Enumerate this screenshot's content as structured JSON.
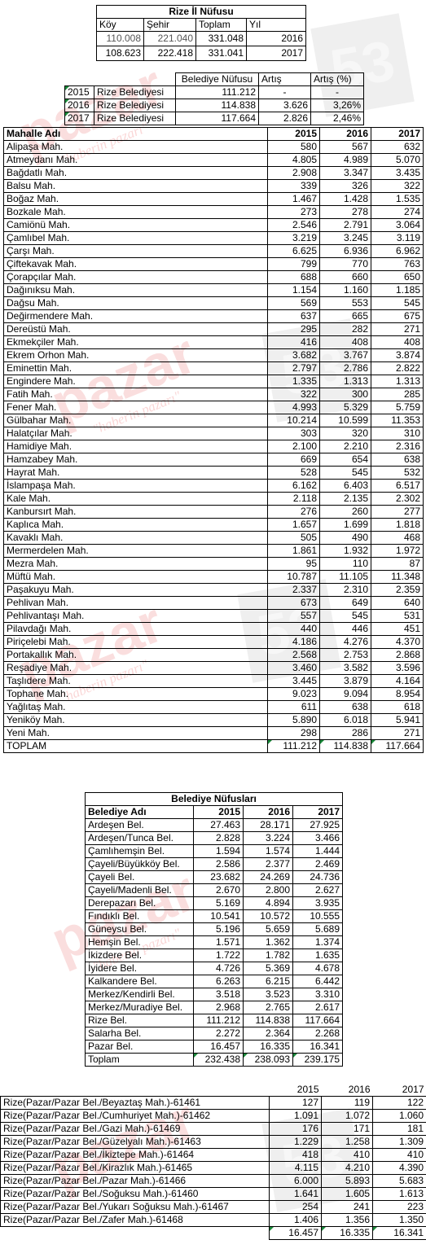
{
  "watermark": {
    "brand": "pazar",
    "slogan": "\"haberin pazarı\"",
    "badge": "53"
  },
  "nufus": {
    "title": "Rize İl Nüfusu",
    "headers": [
      "Köy",
      "Şehir",
      "Toplam",
      "Yıl"
    ],
    "rows": [
      [
        "110.008",
        "221.040",
        "331.048",
        "2016"
      ],
      [
        "108.623",
        "222.418",
        "331.041",
        "2017"
      ]
    ]
  },
  "belediye_nufus": {
    "headers": [
      "",
      "",
      "Belediye Nüfusu",
      "Artış",
      "Artış (%)"
    ],
    "rows": [
      [
        "2015",
        "Rize Belediyesi",
        "111.212",
        "-",
        "-"
      ],
      [
        "2016",
        "Rize Belediyesi",
        "114.838",
        "3.626",
        "3,26%"
      ],
      [
        "2017",
        "Rize Belediyesi",
        "117.664",
        "2.826",
        "2,46%"
      ]
    ]
  },
  "mahalle": {
    "headers": [
      "Mahalle Adı",
      "2015",
      "2016",
      "2017"
    ],
    "rows": [
      [
        "Alipaşa Mah.",
        "580",
        "567",
        "632"
      ],
      [
        "Atmeydanı Mah.",
        "4.805",
        "4.989",
        "5.070"
      ],
      [
        "Bağdatlı Mah.",
        "2.908",
        "3.347",
        "3.435"
      ],
      [
        "Balsu Mah.",
        "339",
        "326",
        "322"
      ],
      [
        "Boğaz Mah.",
        "1.467",
        "1.428",
        "1.535"
      ],
      [
        "Bozkale Mah.",
        "273",
        "278",
        "274"
      ],
      [
        "Camiönü Mah.",
        "2.546",
        "2.791",
        "3.064"
      ],
      [
        "Çamlıbel Mah.",
        "3.219",
        "3.245",
        "3.119"
      ],
      [
        "Çarşı Mah.",
        "6.625",
        "6.936",
        "6.962"
      ],
      [
        "Çiftekavak Mah.",
        "799",
        "770",
        "763"
      ],
      [
        "Çorapçılar Mah.",
        "688",
        "660",
        "650"
      ],
      [
        "Dağınıksu Mah.",
        "1.154",
        "1.160",
        "1.185"
      ],
      [
        "Dağsu Mah.",
        "569",
        "553",
        "545"
      ],
      [
        "Değirmendere Mah.",
        "637",
        "665",
        "675"
      ],
      [
        "Dereüstü Mah.",
        "295",
        "282",
        "271"
      ],
      [
        "Ekmekçiler Mah.",
        "416",
        "408",
        "408"
      ],
      [
        "Ekrem Orhon Mah.",
        "3.682",
        "3.767",
        "3.874"
      ],
      [
        "Eminettin Mah.",
        "2.797",
        "2.786",
        "2.822"
      ],
      [
        "Engindere Mah.",
        "1.335",
        "1.313",
        "1.313"
      ],
      [
        "Fatih Mah.",
        "322",
        "300",
        "285"
      ],
      [
        "Fener Mah.",
        "4.993",
        "5.329",
        "5.759"
      ],
      [
        "Gülbahar Mah.",
        "10.214",
        "10.599",
        "11.353"
      ],
      [
        "Halatçılar Mah.",
        "303",
        "320",
        "310"
      ],
      [
        "Hamidiye Mah.",
        "2.100",
        "2.210",
        "2.316"
      ],
      [
        "Hamzabey Mah.",
        "669",
        "654",
        "638"
      ],
      [
        "Hayrat Mah.",
        "528",
        "545",
        "532"
      ],
      [
        "İslampaşa Mah.",
        "6.162",
        "6.403",
        "6.517"
      ],
      [
        "Kale Mah.",
        "2.118",
        "2.135",
        "2.302"
      ],
      [
        "Kanbursırt Mah.",
        "276",
        "260",
        "277"
      ],
      [
        "Kaplıca Mah.",
        "1.657",
        "1.699",
        "1.818"
      ],
      [
        "Kavaklı Mah.",
        "505",
        "490",
        "468"
      ],
      [
        "Mermerdelen Mah.",
        "1.861",
        "1.932",
        "1.972"
      ],
      [
        "Mezra Mah.",
        "95",
        "110",
        "87"
      ],
      [
        "Müftü Mah.",
        "10.787",
        "11.105",
        "11.348"
      ],
      [
        "Paşakuyu Mah.",
        "2.337",
        "2.310",
        "2.359"
      ],
      [
        "Pehlivan Mah.",
        "673",
        "649",
        "640"
      ],
      [
        "Pehlivantaşı Mah.",
        "557",
        "545",
        "531"
      ],
      [
        "Pilavdağı Mah.",
        "440",
        "446",
        "451"
      ],
      [
        "Piriçelebi Mah.",
        "4.186",
        "4.276",
        "4.370"
      ],
      [
        "Portakallık Mah.",
        "2.568",
        "2.753",
        "2.868"
      ],
      [
        "Reşadiye Mah.",
        "3.460",
        "3.582",
        "3.596"
      ],
      [
        "Taşlıdere Mah.",
        "3.445",
        "3.879",
        "4.164"
      ],
      [
        "Tophane Mah.",
        "9.023",
        "9.094",
        "8.954"
      ],
      [
        "Yağlıtaş Mah.",
        "611",
        "638",
        "618"
      ],
      [
        "Yeniköy Mah.",
        "5.890",
        "6.018",
        "5.941"
      ],
      [
        "Yeni Mah.",
        "298",
        "286",
        "271"
      ]
    ],
    "total": [
      "TOPLAM",
      "111.212",
      "114.838",
      "117.664"
    ]
  },
  "belediyeler": {
    "title": "Belediye Nüfusları",
    "headers": [
      "Belediye Adı",
      "2015",
      "2016",
      "2017"
    ],
    "rows": [
      [
        "Ardeşen Bel.",
        "27.463",
        "28.171",
        "27.925"
      ],
      [
        "Ardeşen/Tunca Bel.",
        "2.828",
        "3.224",
        "3.466"
      ],
      [
        "Çamlıhemşin Bel.",
        "1.594",
        "1.574",
        "1.444"
      ],
      [
        "Çayeli/Büyükköy Bel.",
        "2.586",
        "2.377",
        "2.469"
      ],
      [
        "Çayeli Bel.",
        "23.682",
        "24.269",
        "24.736"
      ],
      [
        "Çayeli/Madenli Bel.",
        "2.670",
        "2.800",
        "2.627"
      ],
      [
        "Derepazarı Bel.",
        "5.169",
        "4.894",
        "3.935"
      ],
      [
        "Fındıklı Bel.",
        "10.541",
        "10.572",
        "10.555"
      ],
      [
        "Güneysu Bel.",
        "5.196",
        "5.659",
        "5.689"
      ],
      [
        "Hemşin Bel.",
        "1.571",
        "1.362",
        "1.374"
      ],
      [
        "İkizdere Bel.",
        "1.722",
        "1.782",
        "1.635"
      ],
      [
        "İyidere Bel.",
        "4.726",
        "5.369",
        "4.678"
      ],
      [
        "Kalkandere Bel.",
        "6.263",
        "6.215",
        "6.442"
      ],
      [
        "Merkez/Kendirli Bel.",
        "3.518",
        "3.523",
        "3.310"
      ],
      [
        "Merkez/Muradiye Bel.",
        "2.968",
        "2.765",
        "2.617"
      ],
      [
        "Rize Bel.",
        "111.212",
        "114.838",
        "117.664"
      ],
      [
        "Salarha Bel.",
        "2.272",
        "2.364",
        "2.268"
      ],
      [
        "Pazar Bel.",
        "16.457",
        "16.335",
        "16.341"
      ]
    ],
    "total": [
      "Toplam",
      "232.438",
      "238.093",
      "239.175"
    ]
  },
  "pazar": {
    "headers": [
      "",
      "2015",
      "2016",
      "2017"
    ],
    "rows": [
      [
        "Rize(Pazar/Pazar Bel./Beyaztaş Mah.)-61461",
        "127",
        "119",
        "122"
      ],
      [
        "Rize(Pazar/Pazar Bel./Cumhuriyet Mah.)-61462",
        "1.091",
        "1.072",
        "1.060"
      ],
      [
        "Rize(Pazar/Pazar Bel./Gazi Mah.)-61469",
        "176",
        "171",
        "181"
      ],
      [
        "Rize(Pazar/Pazar Bel./Güzelyalı Mah.)-61463",
        "1.229",
        "1.258",
        "1.309"
      ],
      [
        "Rize(Pazar/Pazar Bel./İkiztepe Mah.)-61464",
        "418",
        "410",
        "410"
      ],
      [
        "Rize(Pazar/Pazar Bel./Kirazlık Mah.)-61465",
        "4.115",
        "4.210",
        "4.390"
      ],
      [
        "Rize(Pazar/Pazar Bel./Pazar Mah.)-61466",
        "6.000",
        "5.893",
        "5.683"
      ],
      [
        "Rize(Pazar/Pazar Bel./Soğuksu Mah.)-61460",
        "1.641",
        "1.605",
        "1.613"
      ],
      [
        "Rize(Pazar/Pazar Bel./Yukarı Soğuksu Mah.)-61467",
        "254",
        "241",
        "223"
      ],
      [
        "Rize(Pazar/Pazar Bel./Zafer Mah.)-61468",
        "1.406",
        "1.356",
        "1.350"
      ]
    ],
    "total": [
      "",
      "16.457",
      "16.335",
      "16.341"
    ]
  }
}
